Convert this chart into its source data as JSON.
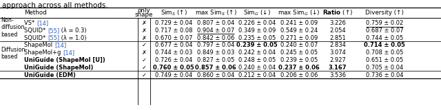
{
  "title": "approach across all methods.",
  "groups": [
    {
      "label": "Non-\ndiffusion\nbased",
      "rows": [
        {
          "method_parts": [
            [
              "VS* ",
              false,
              false
            ],
            [
              "[14]",
              false,
              true
            ]
          ],
          "only_shape": false,
          "cells": {
            "sim_s": {
              "text": "0.729 ± 0.04",
              "bold": false,
              "ul": false
            },
            "max_sim_s": {
              "text": "0.807 ± 0.04",
              "bold": false,
              "ul": false
            },
            "sim_g": {
              "text": "0.226 ± 0.04",
              "bold": false,
              "ul": false
            },
            "max_sim_g": {
              "text": "0.241 ± 0.09",
              "bold": false,
              "ul": false
            },
            "ratio": {
              "text": "3.226",
              "bold": false,
              "ul": false
            },
            "diversity": {
              "text": "0.759 ± 0.02",
              "bold": false,
              "ul": true
            }
          }
        },
        {
          "method_parts": [
            [
              "SQUID* ",
              false,
              false
            ],
            [
              "[55]",
              false,
              true
            ],
            [
              " (λ = 0.3)",
              false,
              false
            ]
          ],
          "only_shape": false,
          "cells": {
            "sim_s": {
              "text": "0.717 ± 0.08",
              "bold": false,
              "ul": false
            },
            "max_sim_s": {
              "text": "0.904 ± 0.07",
              "bold": false,
              "ul": true
            },
            "sim_g": {
              "text": "0.349 ± 0.09",
              "bold": false,
              "ul": false
            },
            "max_sim_g": {
              "text": "0.549 ± 0.24",
              "bold": false,
              "ul": false
            },
            "ratio": {
              "text": "2.054",
              "bold": false,
              "ul": false
            },
            "diversity": {
              "text": "0.687 ± 0.07",
              "bold": false,
              "ul": false
            }
          }
        },
        {
          "method_parts": [
            [
              "SQUID* ",
              false,
              false
            ],
            [
              "[55]",
              false,
              true
            ],
            [
              " (λ = 1.0)",
              false,
              false
            ]
          ],
          "only_shape": false,
          "cells": {
            "sim_s": {
              "text": "0.670 ± 0.07",
              "bold": false,
              "ul": false
            },
            "max_sim_s": {
              "text": "0.842 ± 0.06",
              "bold": false,
              "ul": false
            },
            "sim_g": {
              "text": "0.235 ± 0.05",
              "bold": false,
              "ul": false
            },
            "max_sim_g": {
              "text": "0.271 ± 0.09",
              "bold": false,
              "ul": false
            },
            "ratio": {
              "text": "2.851",
              "bold": false,
              "ul": false
            },
            "diversity": {
              "text": "0.744 ± 0.05",
              "bold": false,
              "ul": false
            }
          }
        }
      ]
    },
    {
      "label": "Diffusion-\nbased",
      "rows": [
        {
          "method_parts": [
            [
              "ShapeMol ",
              false,
              false
            ],
            [
              "[14]",
              false,
              true
            ]
          ],
          "only_shape": true,
          "cells": {
            "sim_s": {
              "text": "0.677 ± 0.04",
              "bold": false,
              "ul": false
            },
            "max_sim_s": {
              "text": "0.797 ± 0.04",
              "bold": false,
              "ul": false
            },
            "sim_g": {
              "text": "0.239 ± 0.05",
              "bold": true,
              "ul": false
            },
            "max_sim_g": {
              "text": "0.240 ± 0.07",
              "bold": false,
              "ul": false
            },
            "ratio": {
              "text": "2.834",
              "bold": false,
              "ul": false
            },
            "diversity": {
              "text": "0.714 ± 0.05",
              "bold": true,
              "ul": false
            }
          }
        },
        {
          "method_parts": [
            [
              "ShapeMol+g ",
              false,
              false
            ],
            [
              "[14]",
              false,
              true
            ]
          ],
          "only_shape": false,
          "cells": {
            "sim_s": {
              "text": "0.744 ± 0.03",
              "bold": false,
              "ul": false
            },
            "max_sim_s": {
              "text": "0.849 ± 0.03",
              "bold": false,
              "ul": false
            },
            "sim_g": {
              "text": "0.242 ± 0.04",
              "bold": false,
              "ul": false
            },
            "max_sim_g": {
              "text": "0.245 ± 0.05",
              "bold": false,
              "ul": false
            },
            "ratio": {
              "text": "3.074",
              "bold": false,
              "ul": false
            },
            "diversity": {
              "text": "0.708 ± 0.05",
              "bold": false,
              "ul": false
            }
          }
        },
        {
          "method_parts": [
            [
              "UniGuide (ShapeMol [U])",
              true,
              false
            ]
          ],
          "only_shape": true,
          "cells": {
            "sim_s": {
              "text": "0.726 ± 0.04",
              "bold": false,
              "ul": false
            },
            "max_sim_s": {
              "text": "0.827 ± 0.05",
              "bold": false,
              "ul": false
            },
            "sim_g": {
              "text": "0.248 ± 0.05",
              "bold": false,
              "ul": false
            },
            "max_sim_g": {
              "text": "0.239 ± 0.05",
              "bold": false,
              "ul": false
            },
            "ratio": {
              "text": "2.927",
              "bold": false,
              "ul": false
            },
            "diversity": {
              "text": "0.651 ± 0.05",
              "bold": false,
              "ul": false
            }
          }
        },
        {
          "method_parts": [
            [
              "UniGuide (ShapeMol)",
              true,
              false
            ]
          ],
          "only_shape": true,
          "cells": {
            "sim_s": {
              "text": "0.760 ± 0.05",
              "bold": true,
              "ul": true
            },
            "max_sim_s": {
              "text": "0.857 ± 0.06",
              "bold": true,
              "ul": false
            },
            "sim_g": {
              "text": "0.240 ± 0.04",
              "bold": false,
              "ul": false
            },
            "max_sim_g": {
              "text": "0.237 ± 0.06",
              "bold": true,
              "ul": false
            },
            "ratio": {
              "text": "3.167",
              "bold": true,
              "ul": false
            },
            "diversity": {
              "text": "0.705 ± 0.04",
              "bold": false,
              "ul": false
            }
          }
        }
      ]
    },
    {
      "label": "",
      "rows": [
        {
          "method_parts": [
            [
              "UniGuide (EDM)",
              true,
              false
            ]
          ],
          "only_shape": true,
          "cells": {
            "sim_s": {
              "text": "0.749 ± 0.04",
              "bold": false,
              "ul": false
            },
            "max_sim_s": {
              "text": "0.860 ± 0.04",
              "bold": false,
              "ul": false
            },
            "sim_g": {
              "text": "0.212 ± 0.04",
              "bold": false,
              "ul": true
            },
            "max_sim_g": {
              "text": "0.206 ± 0.06",
              "bold": false,
              "ul": true
            },
            "ratio": {
              "text": "3.536",
              "bold": false,
              "ul": true
            },
            "diversity": {
              "text": "0.736 ± 0.04",
              "bold": false,
              "ul": false
            }
          }
        }
      ]
    }
  ],
  "ref_color": "#3060C0",
  "col_order": [
    "sim_s",
    "max_sim_s",
    "sim_g",
    "max_sim_g",
    "ratio",
    "diversity"
  ]
}
